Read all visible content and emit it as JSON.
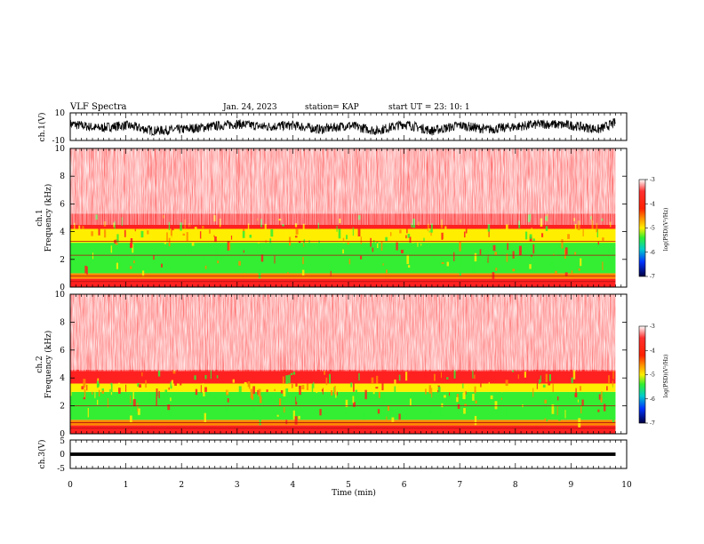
{
  "header": {
    "title": "VLF Spectra",
    "date": "Jan. 24, 2023",
    "station": "station= KAP",
    "start": "start  UT  =  23: 10: 1"
  },
  "colors": {
    "white": "#ffffff",
    "red": "#ff2020",
    "orange": "#ff8a00",
    "yellow": "#ffee00",
    "green": "#33ee33",
    "cyan": "#00cccc",
    "blue": "#0033ff",
    "navy": "#000050"
  },
  "chart_data": [
    {
      "type": "line",
      "name": "ch1-waveform",
      "ylabel": "ch.1(V)",
      "ylim": [
        -10,
        10
      ],
      "yticks": [
        "10",
        "-10"
      ],
      "xlim": [
        0,
        10
      ],
      "description_values": {
        "baseline": 0,
        "envelope_min": -6,
        "envelope_max": 7
      },
      "x": [
        0,
        0.5,
        1,
        1.5,
        2,
        2.5,
        3,
        3.5,
        4,
        4.5,
        5,
        5.5,
        6,
        6.5,
        7,
        7.5,
        8,
        8.5,
        9,
        9.5,
        9.8
      ],
      "y": [
        2,
        -1,
        1,
        -3,
        -2,
        0,
        2,
        0,
        1,
        -2,
        1,
        -3,
        2,
        -3,
        1,
        -2,
        0,
        2,
        1,
        -2,
        3
      ]
    },
    {
      "type": "heatmap",
      "name": "ch1-spectrogram",
      "ylabel": "ch.1\nFrequency  (kHz)",
      "ylim": [
        0,
        10
      ],
      "yticks": [
        "0",
        "2",
        "4",
        "6",
        "8",
        "10"
      ],
      "xlim": [
        0,
        9.8
      ],
      "bands_khz": [
        {
          "from": 0.0,
          "to": 0.6,
          "level": "red"
        },
        {
          "from": 0.6,
          "to": 1.0,
          "level": "orange"
        },
        {
          "from": 1.0,
          "to": 3.2,
          "level": "green"
        },
        {
          "from": 3.2,
          "to": 4.2,
          "level": "yellow"
        },
        {
          "from": 4.2,
          "to": 5.3,
          "level": "red"
        },
        {
          "from": 5.3,
          "to": 10.0,
          "level": "speckle"
        }
      ],
      "lines_khz": [
        0.4,
        0.8,
        2.3,
        3.3
      ]
    },
    {
      "type": "heatmap",
      "name": "ch2-spectrogram",
      "ylabel": "ch.2\nFrequency  (kHz)",
      "ylim": [
        0,
        10
      ],
      "yticks": [
        "0",
        "2",
        "4",
        "6",
        "8",
        "10"
      ],
      "xlim": [
        0,
        9.8
      ],
      "bands_khz": [
        {
          "from": 0.0,
          "to": 0.6,
          "level": "red"
        },
        {
          "from": 0.6,
          "to": 1.0,
          "level": "orange"
        },
        {
          "from": 1.0,
          "to": 3.0,
          "level": "green"
        },
        {
          "from": 3.0,
          "to": 3.6,
          "level": "yellow"
        },
        {
          "from": 3.6,
          "to": 4.6,
          "level": "red"
        },
        {
          "from": 4.6,
          "to": 10.0,
          "level": "speckle"
        }
      ],
      "lines_khz": [
        0.4,
        0.8,
        2.0
      ]
    },
    {
      "type": "line",
      "name": "ch3-waveform",
      "ylabel": "ch.3(V)",
      "ylim": [
        -5,
        5
      ],
      "yticks": [
        "5",
        "0",
        "-5"
      ],
      "xlim": [
        0,
        10
      ],
      "description_values": {
        "baseline": 0,
        "band_half_width": 0.6
      }
    }
  ],
  "x_axis": {
    "label": "Time  (min)",
    "ticks": [
      "0",
      "1",
      "2",
      "3",
      "4",
      "5",
      "6",
      "7",
      "8",
      "9",
      "10"
    ]
  },
  "colorbars": [
    {
      "name": "ch1-colorbar",
      "label": "log(PSD)(V²/Hz)",
      "ticks": [
        "-3",
        "-4",
        "-5",
        "-6",
        "-7"
      ],
      "range": [
        -7,
        -3
      ]
    },
    {
      "name": "ch2-colorbar",
      "label": "log(PSD)(V²/Hz)",
      "ticks": [
        "-3",
        "-4",
        "-5",
        "-6",
        "-7"
      ],
      "range": [
        -7,
        -3
      ]
    }
  ]
}
